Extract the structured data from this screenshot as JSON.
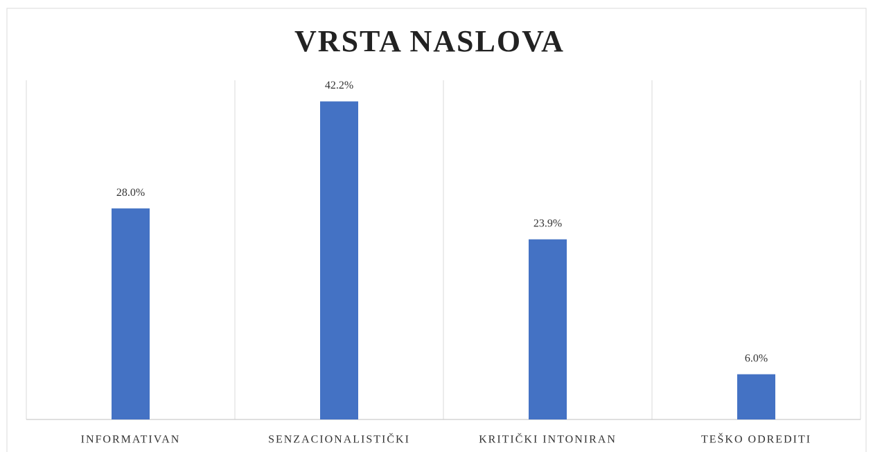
{
  "chart_data": {
    "type": "bar",
    "title": "VRSTA NASLOVA",
    "categories": [
      "INFORMATIVAN",
      "SENZACIONALISTIČKI",
      "KRITIČKI INTONIRAN",
      "TEŠKO ODREDITI"
    ],
    "values": [
      28.0,
      42.2,
      23.9,
      6.0
    ],
    "value_labels": [
      "28.0%",
      "42.2%",
      "23.9%",
      "6.0%"
    ],
    "color": "#4472c4",
    "ylim": [
      0,
      45
    ]
  }
}
